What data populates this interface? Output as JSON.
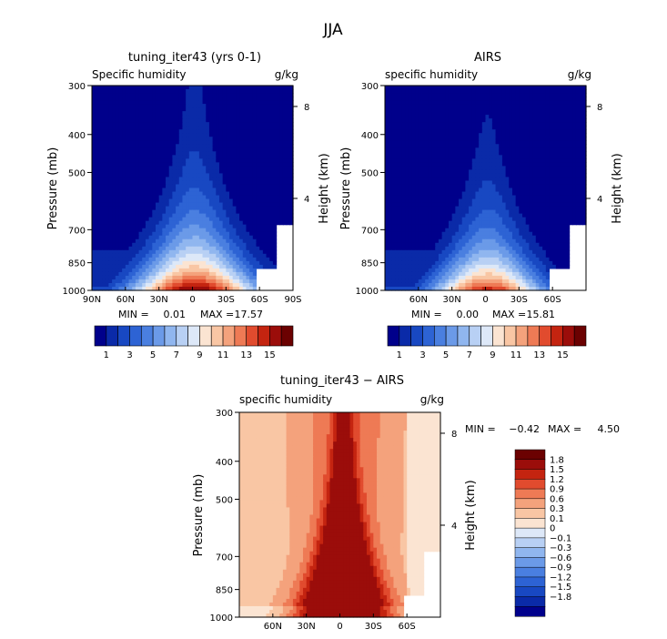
{
  "figure": {
    "title": "JJA"
  },
  "chart_data": [
    {
      "type": "heatmap",
      "title": "tuning_iter43 (yrs 0-1)",
      "left_string": "Specific humidity",
      "right_string": "g/kg",
      "xlabel": "",
      "ylabel": "Pressure (mb)",
      "y2label": "Height (km)",
      "x_ticks": [
        "90N",
        "60N",
        "30N",
        "0",
        "30S",
        "60S",
        "90S"
      ],
      "y_ticks": [
        "300",
        "400",
        "500",
        "700",
        "850",
        "1000"
      ],
      "y2_ticks": [
        "8",
        "4"
      ],
      "xlim": [
        90,
        -90
      ],
      "ylim": [
        1000,
        300
      ],
      "stats": {
        "min_label": "MIN =",
        "min": "0.01",
        "max_label": "MAX =",
        "max": "17.57"
      },
      "peak": {
        "lat": -2,
        "value": 17.57
      },
      "colorbar": {
        "colors": [
          "#00008b",
          "#0a2aa8",
          "#1848c2",
          "#2d63d4",
          "#4a7fe0",
          "#6b9ae8",
          "#90b6ef",
          "#b8d0f4",
          "#dde8f8",
          "#fbe4d2",
          "#f9c6a4",
          "#f4a27c",
          "#ee7a55",
          "#e14b2e",
          "#c42410",
          "#9b0d0a",
          "#6b0101"
        ],
        "labels": [
          "1",
          "3",
          "5",
          "7",
          "9",
          "11",
          "13",
          "15"
        ]
      },
      "field": {
        "max": 17.57,
        "surface": 16.5,
        "center_lat": -2,
        "width_top": 14,
        "width_bottom": 55,
        "scale_height": 0.38
      }
    },
    {
      "type": "heatmap",
      "title": "AIRS",
      "left_string": "specific humidity",
      "right_string": "g/kg",
      "xlabel": "",
      "ylabel": "Pressure (mb)",
      "y2label": "Height (km)",
      "x_ticks": [
        "60N",
        "30N",
        "0",
        "30S",
        "60S"
      ],
      "y_ticks": [
        "300",
        "400",
        "500",
        "700",
        "850",
        "1000"
      ],
      "y2_ticks": [
        "8",
        "4"
      ],
      "xlim": [
        90,
        -90
      ],
      "ylim": [
        1000,
        300
      ],
      "stats": {
        "min_label": "MIN =",
        "min": "0.00",
        "max_label": "MAX =",
        "max": "15.81"
      },
      "peak": {
        "lat": -2,
        "value": 15.81
      },
      "colorbar": {
        "colors": [
          "#00008b",
          "#0a2aa8",
          "#1848c2",
          "#2d63d4",
          "#4a7fe0",
          "#6b9ae8",
          "#90b6ef",
          "#b8d0f4",
          "#dde8f8",
          "#fbe4d2",
          "#f9c6a4",
          "#f4a27c",
          "#ee7a55",
          "#e14b2e",
          "#c42410",
          "#9b0d0a",
          "#6b0101"
        ],
        "labels": [
          "1",
          "3",
          "5",
          "7",
          "9",
          "11",
          "13",
          "15"
        ]
      },
      "field": {
        "max": 15.81,
        "surface": 14.8,
        "center_lat": -2,
        "width_top": 12,
        "width_bottom": 48,
        "scale_height": 0.34
      }
    },
    {
      "type": "heatmap",
      "title": "tuning_iter43 − AIRS",
      "left_string": "specific humidity",
      "right_string": "g/kg",
      "xlabel": "",
      "ylabel": "Pressure (mb)",
      "y2label": "Height (km)",
      "x_ticks": [
        "60N",
        "30N",
        "0",
        "30S",
        "60S"
      ],
      "y_ticks": [
        "300",
        "400",
        "500",
        "700",
        "850",
        "1000"
      ],
      "y2_ticks": [
        "8",
        "4"
      ],
      "xlim": [
        90,
        -90
      ],
      "ylim": [
        1000,
        300
      ],
      "stats": {
        "min_label": "MIN =",
        "min": "−0.42",
        "max_label": "MAX =",
        "max": "4.50"
      },
      "peak": {
        "lat": -3,
        "value": 4.5
      },
      "colorbar": {
        "colors": [
          "#00008b",
          "#0a2aa8",
          "#1848c2",
          "#2d63d4",
          "#4a7fe0",
          "#6b9ae8",
          "#90b6ef",
          "#b8d0f4",
          "#dde8f8",
          "#fbe4d2",
          "#f9c6a4",
          "#f4a27c",
          "#ee7a55",
          "#e14b2e",
          "#c42410",
          "#9b0d0a",
          "#6b0101"
        ],
        "labels": [
          "1.8",
          "1.5",
          "1.2",
          "0.9",
          "0.6",
          "0.3",
          "0.1",
          "0",
          "−0.1",
          "−0.3",
          "−0.6",
          "−0.9",
          "−1.2",
          "−1.5",
          "−1.8"
        ]
      },
      "levels": [
        -1.8,
        -1.5,
        -1.2,
        -0.9,
        -0.6,
        -0.3,
        -0.1,
        0,
        0.1,
        0.3,
        0.6,
        0.9,
        1.2,
        1.5,
        1.8
      ]
    }
  ]
}
